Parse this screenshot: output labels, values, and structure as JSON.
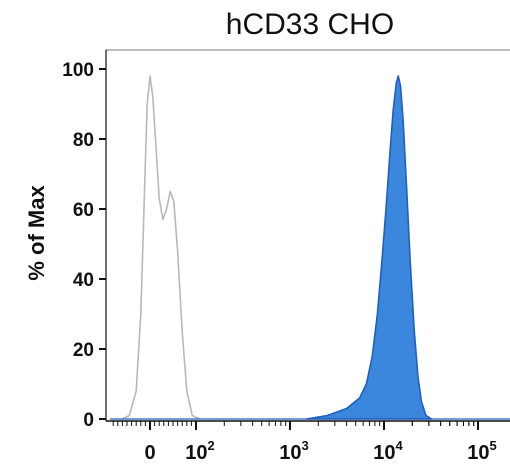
{
  "chart_data": {
    "type": "area",
    "title": "hCD33 CHO",
    "xlabel": "",
    "ylabel": "% of Max",
    "xscale": "biexponential (log above 10^2)",
    "ylim": [
      0,
      100
    ],
    "yticks": [
      0,
      20,
      40,
      60,
      80,
      100
    ],
    "xticks": [
      {
        "base": "0",
        "exp": "",
        "value": 0
      },
      {
        "base": "10",
        "exp": "2",
        "value": 100
      },
      {
        "base": "10",
        "exp": "3",
        "value": 1000
      },
      {
        "base": "10",
        "exp": "4",
        "value": 10000
      },
      {
        "base": "10",
        "exp": "5",
        "value": 100000
      }
    ],
    "grid": false,
    "series": [
      {
        "style": "outline",
        "color": "#b8b8b8",
        "points": [
          [
            -60,
            0
          ],
          [
            -45,
            1
          ],
          [
            -30,
            8
          ],
          [
            -20,
            30
          ],
          [
            -12,
            65
          ],
          [
            -6,
            90
          ],
          [
            0,
            98
          ],
          [
            6,
            92
          ],
          [
            12,
            80
          ],
          [
            20,
            63
          ],
          [
            28,
            57
          ],
          [
            36,
            60
          ],
          [
            44,
            65
          ],
          [
            52,
            62
          ],
          [
            60,
            48
          ],
          [
            70,
            25
          ],
          [
            80,
            8
          ],
          [
            92,
            1
          ],
          [
            110,
            0
          ]
        ]
      },
      {
        "style": "filled",
        "color": "#1f5fbf",
        "fill": "#3b87de",
        "points": [
          [
            1500,
            0
          ],
          [
            2500,
            1
          ],
          [
            4000,
            3
          ],
          [
            5500,
            6
          ],
          [
            6500,
            10
          ],
          [
            7500,
            18
          ],
          [
            8500,
            30
          ],
          [
            9500,
            45
          ],
          [
            10500,
            60
          ],
          [
            11500,
            75
          ],
          [
            12500,
            88
          ],
          [
            13500,
            96
          ],
          [
            14200,
            98
          ],
          [
            15000,
            95
          ],
          [
            16000,
            85
          ],
          [
            17500,
            65
          ],
          [
            19000,
            45
          ],
          [
            21000,
            25
          ],
          [
            23000,
            12
          ],
          [
            25000,
            5
          ],
          [
            28000,
            1
          ],
          [
            32000,
            0
          ]
        ]
      }
    ]
  }
}
